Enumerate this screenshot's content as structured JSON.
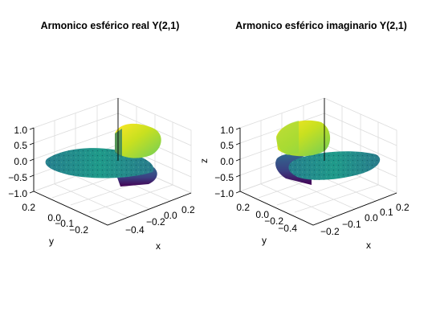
{
  "chart_data": [
    {
      "type": "surface3d",
      "title": "Armonico esférico real Y(2,1)",
      "xlabel": "x",
      "ylabel": "y",
      "zlabel": "",
      "x_ticks": [
        "−0.4",
        "−0.2",
        "0.0",
        "0.2"
      ],
      "y_ticks": [
        "0.2",
        "0.0",
        "−0.1",
        "−0.2"
      ],
      "z_ticks": [
        "1.0",
        "0.5",
        "0.0",
        "−0.5",
        "−1.0"
      ],
      "surface_values": [
        "yellow lobe top",
        "teal lobe middle",
        "dark purple lobe bottom"
      ],
      "grid": true
    },
    {
      "type": "surface3d",
      "title": "Armonico esférico imaginario Y(2,1)",
      "xlabel": "x",
      "ylabel": "y",
      "zlabel": "z",
      "x_ticks": [
        "−0.2",
        "−0.1",
        "0.0",
        "0.1",
        "0.2"
      ],
      "y_ticks": [
        "0.2",
        "0.0",
        "−0.2",
        "−0.4"
      ],
      "z_ticks": [
        "1.0",
        "0.5",
        "0.0",
        "−0.5",
        "−1.0"
      ],
      "surface_values": [
        "yellow lobe top",
        "teal lobe middle",
        "dark purple lobe bottom"
      ],
      "grid": true
    }
  ],
  "colors": {
    "colormap": [
      "#440154",
      "#3b528b",
      "#21918c",
      "#5ec962",
      "#fde725"
    ]
  }
}
